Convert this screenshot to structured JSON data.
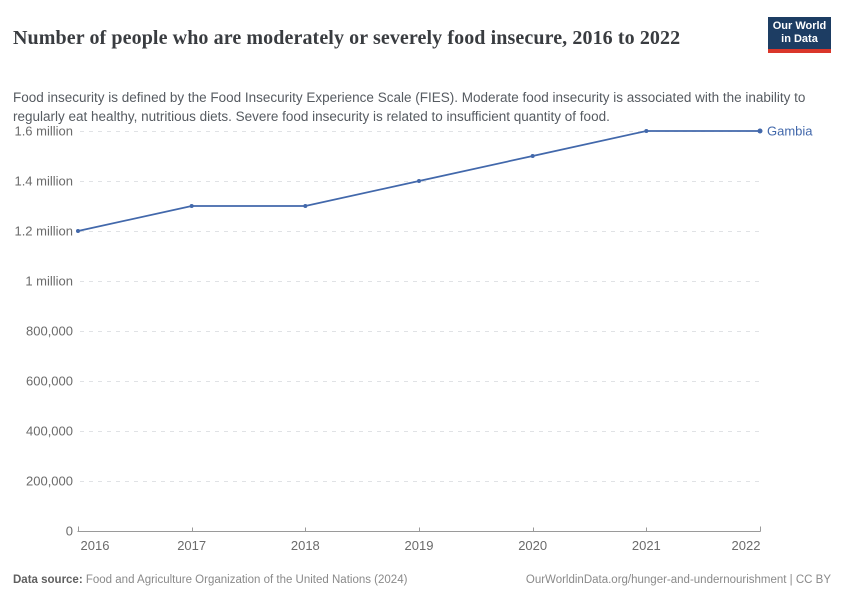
{
  "header": {
    "title": "Number of people who are moderately or severely food insecure, 2016 to 2022",
    "subtitle": "Food insecurity is defined by the Food Insecurity Experience Scale (FIES). Moderate food insecurity is associated with the inability to regularly eat healthy, nutritious diets. Severe food insecurity is related to insufficient quantity of food.",
    "logo": {
      "line1": "Our World",
      "line2": "in Data",
      "bg_color": "#1d3d63",
      "bar_color": "#da362a"
    }
  },
  "chart_data": {
    "type": "line",
    "title": "Number of people who are moderately or severely food insecure, 2016 to 2022",
    "xlabel": "",
    "ylabel": "",
    "x": [
      2016,
      2017,
      2018,
      2019,
      2020,
      2021,
      2022
    ],
    "series": [
      {
        "name": "Gambia",
        "values": [
          1200000,
          1300000,
          1300000,
          1400000,
          1500000,
          1600000,
          1600000
        ]
      }
    ],
    "ylim": [
      0,
      1600000
    ],
    "yticks": [
      {
        "value": 0,
        "label": "0"
      },
      {
        "value": 200000,
        "label": "200,000"
      },
      {
        "value": 400000,
        "label": "400,000"
      },
      {
        "value": 600000,
        "label": "600,000"
      },
      {
        "value": 800000,
        "label": "800,000"
      },
      {
        "value": 1000000,
        "label": "1 million"
      },
      {
        "value": 1200000,
        "label": "1.2 million"
      },
      {
        "value": 1400000,
        "label": "1.4 million"
      },
      {
        "value": 1600000,
        "label": "1.6 million"
      }
    ],
    "xtick_labels": [
      "2016",
      "2017",
      "2018",
      "2019",
      "2020",
      "2021",
      "2022"
    ],
    "grid": "horizontal-dashed",
    "grid_color": "#e0e2e5",
    "axis_color": "#9a9a9a",
    "line_color": "#4268ab",
    "legend_position": "end-of-line label"
  },
  "footer": {
    "source_label": "Data source:",
    "source_text": " Food and Agriculture Organization of the United Nations (2024)",
    "link": "OurWorldinData.org/hunger-and-undernourishment | CC BY"
  }
}
